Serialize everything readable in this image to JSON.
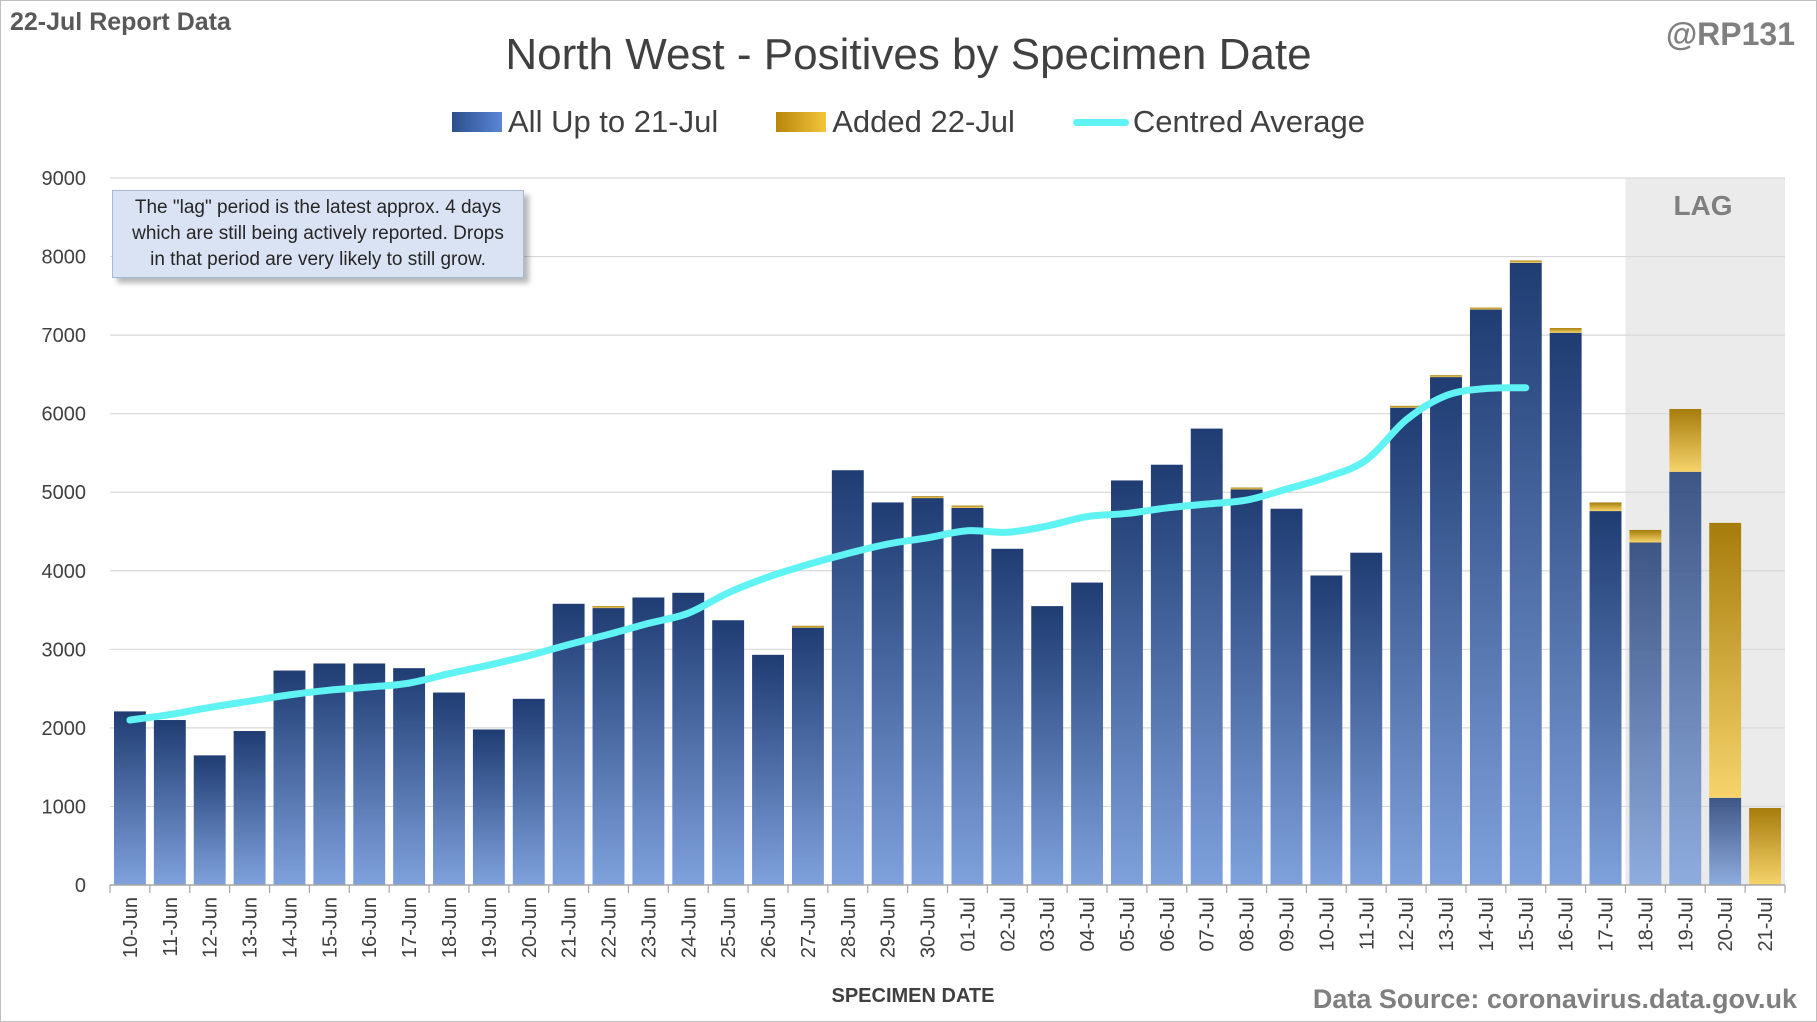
{
  "header": {
    "report_label": "22-Jul Report Data",
    "handle": "@RP131",
    "title": "North West - Positives by Specimen Date"
  },
  "legend": {
    "base": "All Up to 21-Jul",
    "added": "Added 22-Jul",
    "average": "Centred Average"
  },
  "annotation": {
    "lines": [
      "The \"lag\" period is the latest approx. 4 days",
      "which are still being actively reported.  Drops",
      "in that period are very likely to still grow."
    ]
  },
  "lag_label": "LAG",
  "footer": {
    "x_axis_title": "SPECIMEN DATE",
    "source": "Data Source: coronavirus.data.gov.uk"
  },
  "colors": {
    "base_dark": "#1f3c73",
    "base_light": "#7fa1dc",
    "added_dark": "#a67c0c",
    "added_light": "#f6d46a",
    "average": "#5ff3f3",
    "lag_shade": "#ebebeb",
    "gridline": "#d9d9d9"
  },
  "chart_data": {
    "type": "bar",
    "stacked": true,
    "categories": [
      "10-Jun",
      "11-Jun",
      "12-Jun",
      "13-Jun",
      "14-Jun",
      "15-Jun",
      "16-Jun",
      "17-Jun",
      "18-Jun",
      "19-Jun",
      "20-Jun",
      "21-Jun",
      "22-Jun",
      "23-Jun",
      "24-Jun",
      "25-Jun",
      "26-Jun",
      "27-Jun",
      "28-Jun",
      "29-Jun",
      "30-Jun",
      "01-Jul",
      "02-Jul",
      "03-Jul",
      "04-Jul",
      "05-Jul",
      "06-Jul",
      "07-Jul",
      "08-Jul",
      "09-Jul",
      "10-Jul",
      "11-Jul",
      "12-Jul",
      "13-Jul",
      "14-Jul",
      "15-Jul",
      "16-Jul",
      "17-Jul",
      "18-Jul",
      "19-Jul",
      "20-Jul",
      "21-Jul"
    ],
    "series": [
      {
        "name": "All Up to 21-Jul",
        "values": [
          2210,
          2100,
          1650,
          1960,
          2730,
          2820,
          2820,
          2760,
          2450,
          1980,
          2370,
          3580,
          3540,
          3660,
          3720,
          3370,
          2930,
          3290,
          5280,
          4870,
          4930,
          4800,
          4280,
          3550,
          3850,
          5150,
          5350,
          5810,
          5040,
          4790,
          3940,
          4230,
          6080,
          6470,
          7330,
          7920,
          7030,
          4760,
          4360,
          5260,
          1110,
          0
        ]
      },
      {
        "name": "Added 22-Jul",
        "values": [
          0,
          0,
          0,
          0,
          0,
          0,
          0,
          0,
          0,
          0,
          0,
          0,
          10,
          0,
          0,
          0,
          0,
          10,
          0,
          0,
          20,
          30,
          0,
          0,
          0,
          0,
          0,
          0,
          20,
          0,
          0,
          0,
          20,
          20,
          20,
          30,
          60,
          110,
          160,
          800,
          3500,
          980
        ]
      },
      {
        "name": "Centred Average",
        "type": "line",
        "values": [
          2100,
          2170,
          2260,
          2340,
          2420,
          2480,
          2520,
          2570,
          2690,
          2800,
          2920,
          3060,
          3190,
          3330,
          3460,
          3720,
          3920,
          4080,
          4220,
          4340,
          4420,
          4510,
          4490,
          4570,
          4690,
          4730,
          4800,
          4850,
          4900,
          5040,
          5190,
          5410,
          5920,
          6230,
          6320,
          6330,
          null,
          null,
          null,
          null,
          null,
          null
        ]
      }
    ],
    "ylim": [
      0,
      9000
    ],
    "yticks": [
      0,
      1000,
      2000,
      3000,
      4000,
      5000,
      6000,
      7000,
      8000,
      9000
    ],
    "xlabel": "SPECIMEN DATE",
    "ylabel": "",
    "grid": true,
    "legend_position": "top-center",
    "lag_period": [
      "18-Jul",
      "21-Jul"
    ]
  }
}
